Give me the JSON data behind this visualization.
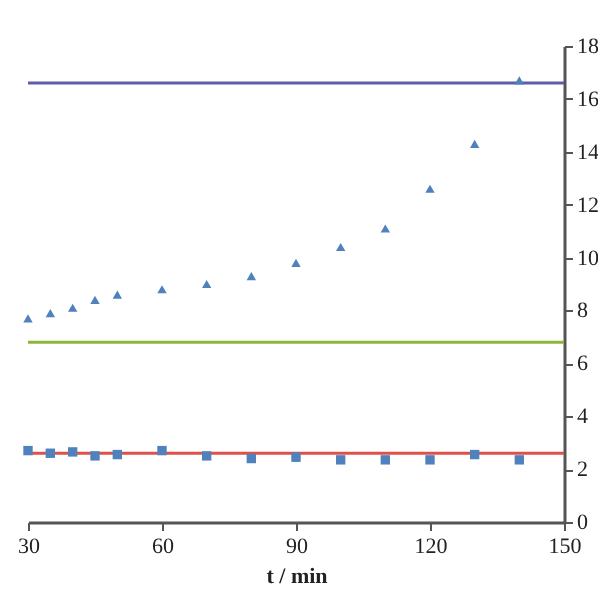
{
  "chart_data": {
    "type": "scatter",
    "xlabel": "t / min",
    "x": [
      30,
      35,
      40,
      45,
      50,
      60,
      70,
      80,
      90,
      100,
      110,
      120,
      130,
      140
    ],
    "series": [
      {
        "color": "#4f81bd",
        "marker": "triangle",
        "values": [
          7.7,
          7.9,
          8.1,
          8.4,
          8.6,
          8.8,
          9.0,
          9.3,
          9.8,
          10.4,
          11.1,
          12.6,
          14.3,
          16.7
        ]
      },
      {
        "color": "#4f81bd",
        "marker": "square",
        "values": [
          2.7,
          2.6,
          2.65,
          2.5,
          2.55,
          2.7,
          2.5,
          2.4,
          2.45,
          2.35,
          2.35,
          2.35,
          2.55,
          2.35
        ]
      }
    ],
    "xlim": [
      30,
      150
    ],
    "xticks": [
      30,
      60,
      90,
      120,
      150
    ],
    "ylim": [
      0,
      18
    ],
    "yticks": [
      0,
      2,
      4,
      6,
      8,
      10,
      12,
      14,
      16,
      18
    ],
    "ref_lines": [
      {
        "axis": "y",
        "value": 16.6,
        "color": "#5d5fa8"
      },
      {
        "axis": "y",
        "value": 6.8,
        "color": "#8db53c"
      },
      {
        "axis": "y",
        "value": 2.6,
        "color": "#e0504a"
      }
    ],
    "grid": false
  }
}
